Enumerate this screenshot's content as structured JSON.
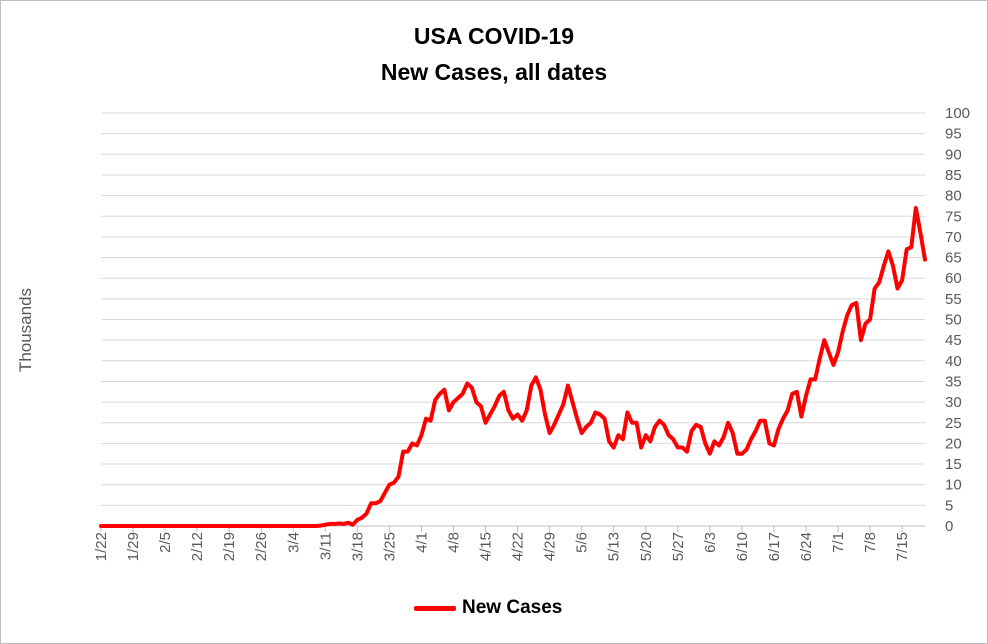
{
  "title_line1": "USA COVID-19",
  "title_line2": "New Cases, all dates",
  "chart_data": {
    "type": "line",
    "title": "USA COVID-19 New Cases, all dates",
    "ylabel": "Thousands",
    "xlabel": "",
    "ylim": [
      0,
      100
    ],
    "ytick_step": 5,
    "yaxis_side": "right",
    "grid": true,
    "legend_position": "bottom",
    "line_color": "#ff0000",
    "x_tick_labels": [
      "1/22",
      "1/29",
      "2/5",
      "2/12",
      "2/19",
      "2/26",
      "3/4",
      "3/11",
      "3/18",
      "3/25",
      "4/1",
      "4/8",
      "4/15",
      "4/22",
      "4/29",
      "5/6",
      "5/13",
      "5/20",
      "5/27",
      "6/3",
      "6/10",
      "6/17",
      "6/24",
      "7/1",
      "7/8",
      "7/15"
    ],
    "series": [
      {
        "name": "New Cases",
        "start_date": "1/22",
        "values": [
          0,
          0,
          0,
          0,
          0,
          0,
          0,
          0,
          0,
          0,
          0,
          0,
          0,
          0,
          0,
          0,
          0,
          0,
          0,
          0,
          0,
          0,
          0,
          0,
          0,
          0,
          0,
          0,
          0,
          0,
          0,
          0,
          0,
          0,
          0,
          0,
          0,
          0,
          0,
          0,
          0,
          0,
          0,
          0,
          0,
          0,
          0,
          0,
          0.1,
          0.3,
          0.5,
          0.5,
          0.6,
          0.5,
          0.8,
          0.3,
          1.5,
          2,
          3,
          5.5,
          5.5,
          6,
          8,
          10,
          10.5,
          12,
          18,
          18,
          20,
          19.5,
          22,
          26,
          25.5,
          30.5,
          32,
          33,
          28,
          30,
          31,
          32,
          34.5,
          33.5,
          30,
          29,
          25,
          27,
          29,
          31.5,
          32.5,
          28,
          26,
          27,
          25.5,
          28,
          34,
          36,
          33,
          27,
          22.5,
          24.5,
          27,
          29.5,
          34,
          30,
          26,
          22.5,
          24,
          25,
          27.5,
          27,
          26,
          20.5,
          19,
          22,
          21,
          27.5,
          25,
          25,
          19,
          22,
          20.5,
          24,
          25.5,
          24.5,
          22,
          21,
          19,
          19,
          18,
          23,
          24.5,
          24,
          20,
          17.5,
          20.5,
          19.5,
          21.5,
          25,
          22.5,
          17.5,
          17.5,
          18.5,
          21,
          23,
          25.5,
          25.5,
          20,
          19.5,
          23.5,
          26,
          28,
          32,
          32.5,
          26.5,
          31.5,
          35.5,
          35.5,
          40.5,
          45,
          42,
          39,
          42,
          47,
          51,
          53.5,
          54,
          45,
          49,
          50,
          57.5,
          59,
          63,
          66.5,
          63,
          57.5,
          59.5,
          67,
          67.5,
          77,
          71,
          64.5
        ]
      }
    ]
  }
}
